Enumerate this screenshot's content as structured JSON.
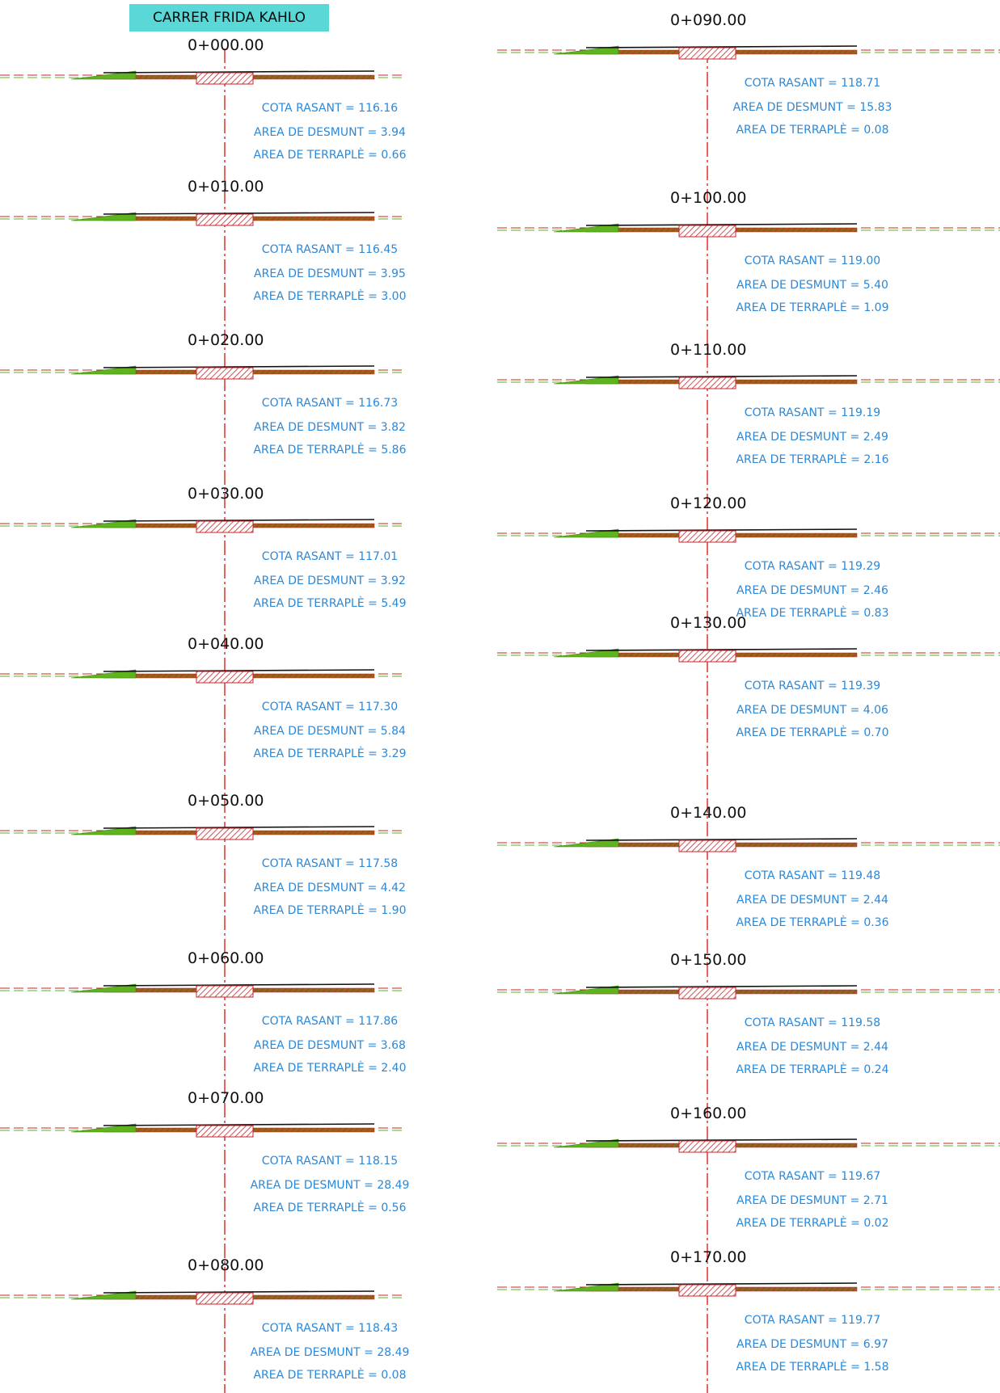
{
  "title": "CARRER FRIDA KAHLO",
  "label_formats": {
    "cota": "COTA RASANT = {v}",
    "desmunt": "AREA DE DESMUNT = {v}",
    "terraple": "AREA DE TERRAPLÈ = {v}"
  },
  "colors": {
    "label_blue": "#2b88d8",
    "axis_red": "#e3201b",
    "cut_hatch": "#c8242a",
    "fill_green": "#5fb31e",
    "title_bg": "#5ad7d7"
  },
  "sections": [
    {
      "station": "0+000.00",
      "cota_rasant": "116.16",
      "area_desmunt": "3.94",
      "area_terraple": "0.66"
    },
    {
      "station": "0+010.00",
      "cota_rasant": "116.45",
      "area_desmunt": "3.95",
      "area_terraple": "3.00"
    },
    {
      "station": "0+020.00",
      "cota_rasant": "116.73",
      "area_desmunt": "3.82",
      "area_terraple": "5.86"
    },
    {
      "station": "0+030.00",
      "cota_rasant": "117.01",
      "area_desmunt": "3.92",
      "area_terraple": "5.49"
    },
    {
      "station": "0+040.00",
      "cota_rasant": "117.30",
      "area_desmunt": "5.84",
      "area_terraple": "3.29"
    },
    {
      "station": "0+050.00",
      "cota_rasant": "117.58",
      "area_desmunt": "4.42",
      "area_terraple": "1.90"
    },
    {
      "station": "0+060.00",
      "cota_rasant": "117.86",
      "area_desmunt": "3.68",
      "area_terraple": "2.40"
    },
    {
      "station": "0+070.00",
      "cota_rasant": "118.15",
      "area_desmunt": "28.49",
      "area_terraple": "0.56"
    },
    {
      "station": "0+080.00",
      "cota_rasant": "118.43",
      "area_desmunt": "28.49",
      "area_terraple": "0.08"
    },
    {
      "station": "0+090.00",
      "cota_rasant": "118.71",
      "area_desmunt": "15.83",
      "area_terraple": "0.08"
    },
    {
      "station": "0+100.00",
      "cota_rasant": "119.00",
      "area_desmunt": "5.40",
      "area_terraple": "1.09"
    },
    {
      "station": "0+110.00",
      "cota_rasant": "119.19",
      "area_desmunt": "2.49",
      "area_terraple": "2.16"
    },
    {
      "station": "0+120.00",
      "cota_rasant": "119.29",
      "area_desmunt": "2.46",
      "area_terraple": "0.83"
    },
    {
      "station": "0+130.00",
      "cota_rasant": "119.39",
      "area_desmunt": "4.06",
      "area_terraple": "0.70"
    },
    {
      "station": "0+140.00",
      "cota_rasant": "119.48",
      "area_desmunt": "2.44",
      "area_terraple": "0.36"
    },
    {
      "station": "0+150.00",
      "cota_rasant": "119.58",
      "area_desmunt": "2.44",
      "area_terraple": "0.24"
    },
    {
      "station": "0+160.00",
      "cota_rasant": "119.67",
      "area_desmunt": "2.71",
      "area_terraple": "0.02"
    },
    {
      "station": "0+170.00",
      "cota_rasant": "119.77",
      "area_desmunt": "6.97",
      "area_terraple": "1.58"
    }
  ]
}
